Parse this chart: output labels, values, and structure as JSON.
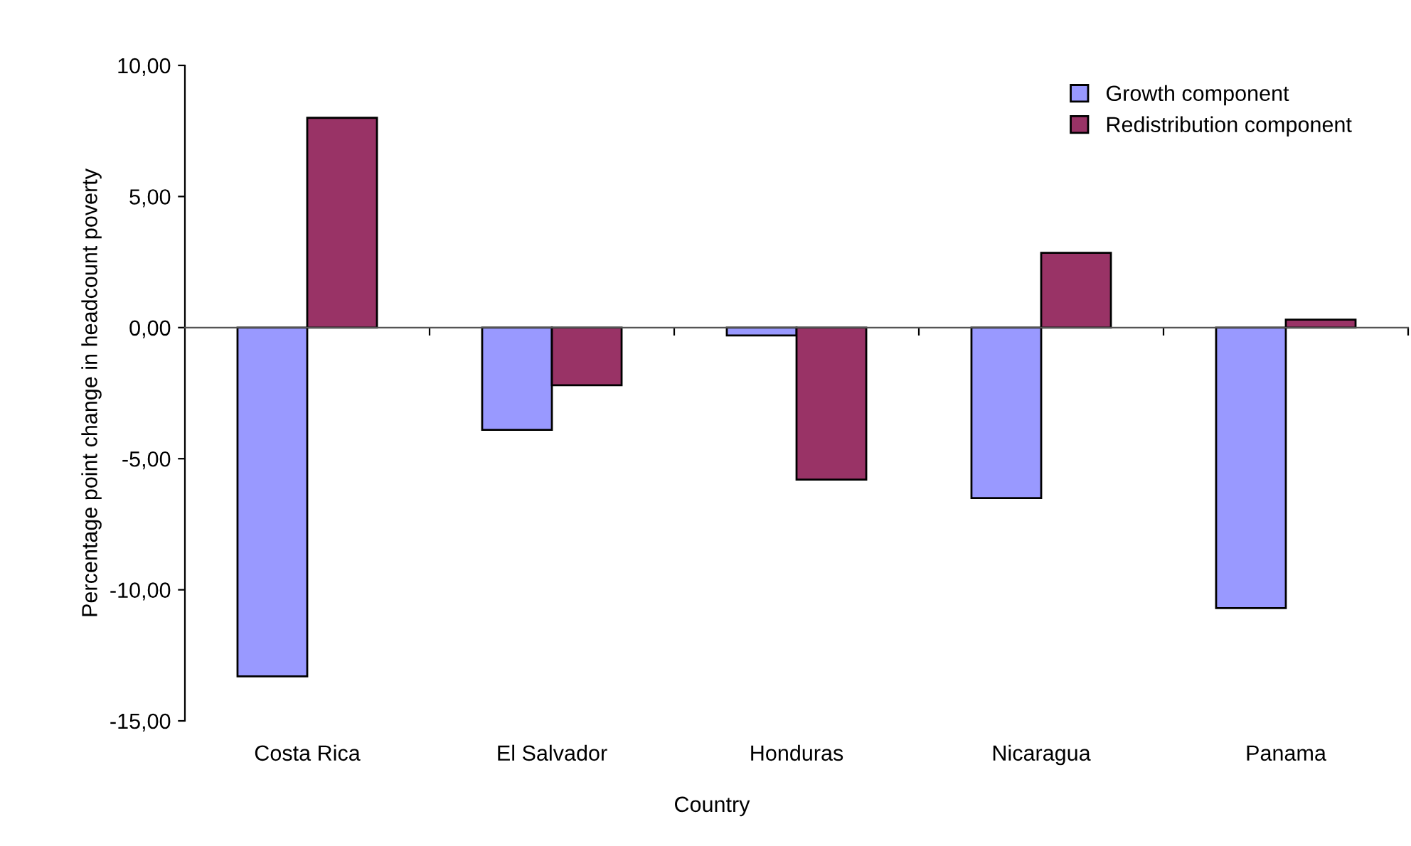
{
  "chart_data": {
    "type": "bar",
    "xlabel": "Country",
    "ylabel": "Percentage point change in headcount poverty",
    "categories": [
      "Costa Rica",
      "El Salvador",
      "Honduras",
      "Nicaragua",
      "Panama"
    ],
    "series": [
      {
        "name": "Growth component",
        "color": "#9999ff",
        "values": [
          -13.3,
          -3.9,
          -0.3,
          -6.5,
          -10.7
        ]
      },
      {
        "name": "Redistribution component",
        "color": "#993366",
        "values": [
          8.0,
          -2.2,
          -5.8,
          2.85,
          0.3
        ]
      }
    ],
    "ylim": [
      -15,
      10
    ],
    "yticks": [
      {
        "value": -15,
        "label": "-15,00"
      },
      {
        "value": -10,
        "label": "-10,00"
      },
      {
        "value": -5,
        "label": "-5,00"
      },
      {
        "value": 0,
        "label": "0,00"
      },
      {
        "value": 5,
        "label": "5,00"
      },
      {
        "value": 10,
        "label": "10,00"
      }
    ],
    "legend": "top right"
  }
}
